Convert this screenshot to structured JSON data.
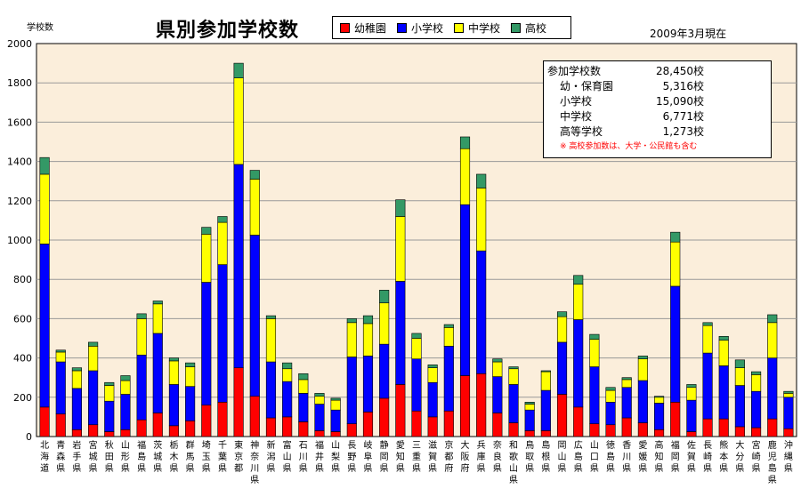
{
  "title": "県別参加学校数",
  "y_unit_label": "学校数",
  "date_note": "2009年3月現在",
  "summary": {
    "rows": [
      {
        "label": "参加学校数",
        "value": "28,450校"
      },
      {
        "label": "幼・保育園",
        "value": "5,316校"
      },
      {
        "label": "小学校",
        "value": "15,090校"
      },
      {
        "label": "中学校",
        "value": "6,771校"
      },
      {
        "label": "高等学校",
        "value": "1,273校"
      }
    ],
    "note": "※ 高校参加数は、大学・公民館も含む"
  },
  "colors": {
    "kindergarten": "#ff0000",
    "elementary": "#0000ff",
    "junior_high": "#ffff00",
    "high": "#339966",
    "plot_bg": "#fbeedb",
    "grid": "#999999"
  },
  "chart_data": {
    "type": "bar",
    "stacked": true,
    "title": "県別参加学校数",
    "ylabel": "学校数",
    "ylim": [
      0,
      2000
    ],
    "yticks": [
      0,
      200,
      400,
      600,
      800,
      1000,
      1200,
      1400,
      1600,
      1800,
      2000
    ],
    "grid": true,
    "legend": "top",
    "categories": [
      "北海道",
      "青森県",
      "岩手県",
      "宮城県",
      "秋田県",
      "山形県",
      "福島県",
      "茨城県",
      "栃木県",
      "群馬県",
      "埼玉県",
      "千葉県",
      "東京都",
      "神奈川県",
      "新潟県",
      "富山県",
      "石川県",
      "福井県",
      "山梨県",
      "長野県",
      "岐阜県",
      "静岡県",
      "愛知県",
      "三重県",
      "滋賀県",
      "京都府",
      "大阪府",
      "兵庫県",
      "奈良県",
      "和歌山県",
      "鳥取県",
      "島根県",
      "岡山県",
      "広島県",
      "山口県",
      "徳島県",
      "香川県",
      "愛媛県",
      "高知県",
      "福岡県",
      "佐賀県",
      "長崎県",
      "熊本県",
      "大分県",
      "宮崎県",
      "鹿児島県",
      "沖縄県"
    ],
    "series": [
      {
        "name": "幼稚園",
        "color": "#ff0000",
        "values": [
          150,
          115,
          35,
          60,
          25,
          35,
          85,
          120,
          55,
          80,
          160,
          175,
          350,
          205,
          95,
          100,
          75,
          30,
          25,
          65,
          125,
          195,
          265,
          130,
          100,
          130,
          310,
          320,
          120,
          70,
          30,
          30,
          215,
          150,
          65,
          60,
          95,
          70,
          35,
          175,
          25,
          90,
          90,
          50,
          45,
          90,
          40
        ]
      },
      {
        "name": "小学校",
        "color": "#0000ff",
        "values": [
          830,
          265,
          210,
          275,
          155,
          180,
          330,
          405,
          210,
          175,
          625,
          700,
          1035,
          820,
          285,
          180,
          145,
          135,
          110,
          340,
          285,
          275,
          525,
          265,
          175,
          330,
          870,
          625,
          185,
          195,
          105,
          205,
          265,
          445,
          290,
          115,
          155,
          215,
          135,
          590,
          160,
          335,
          270,
          210,
          185,
          310,
          160
        ]
      },
      {
        "name": "中学校",
        "color": "#ffff00",
        "values": [
          355,
          50,
          90,
          125,
          80,
          70,
          185,
          150,
          120,
          100,
          245,
          215,
          440,
          285,
          220,
          65,
          70,
          40,
          50,
          175,
          165,
          210,
          330,
          105,
          75,
          95,
          285,
          320,
          75,
          80,
          30,
          95,
          130,
          180,
          140,
          60,
          40,
          110,
          30,
          225,
          65,
          140,
          130,
          90,
          85,
          180,
          20
        ]
      },
      {
        "name": "高校",
        "color": "#339966",
        "values": [
          85,
          10,
          15,
          20,
          15,
          25,
          25,
          15,
          15,
          20,
          35,
          30,
          75,
          45,
          15,
          30,
          30,
          15,
          10,
          20,
          40,
          65,
          85,
          25,
          15,
          15,
          60,
          70,
          15,
          10,
          10,
          5,
          25,
          45,
          25,
          15,
          10,
          15,
          5,
          50,
          15,
          15,
          20,
          40,
          15,
          40,
          10
        ]
      }
    ]
  }
}
